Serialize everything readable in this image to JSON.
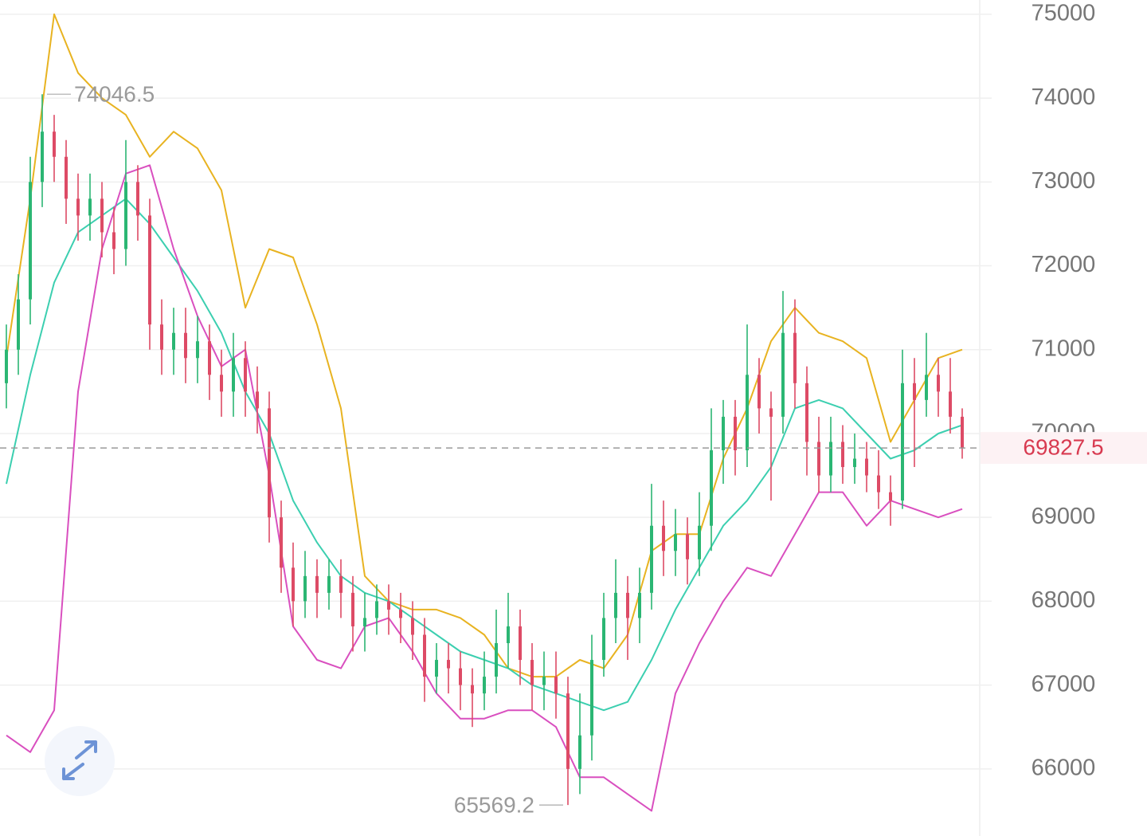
{
  "chart_data": {
    "type": "candlestick",
    "open": [
      70600,
      71000,
      71600,
      73000,
      73600,
      73300,
      72800,
      72600,
      72800,
      72400,
      72200,
      73000,
      72600,
      71300,
      71000,
      71200,
      70900,
      71100,
      70700,
      70500,
      70900,
      70500,
      70300,
      69000,
      68400,
      68000,
      68300,
      68100,
      68300,
      68100,
      67700,
      67800,
      68000,
      67900,
      67800,
      67600,
      67100,
      67300,
      67200,
      67000,
      66900,
      67100,
      67500,
      67700,
      67300,
      67000,
      67100,
      66900,
      66000,
      66400,
      67300,
      67800,
      68100,
      67800,
      68100,
      68900,
      68600,
      68800,
      68500,
      68900,
      69800,
      70200,
      69800,
      70700,
      70300,
      70200,
      71200,
      70600,
      69900,
      69500,
      69900,
      69600,
      69700,
      69500,
      69300,
      69200,
      70600,
      70400,
      70700,
      70500,
      70200
    ],
    "high": [
      71300,
      71900,
      73300,
      74046.5,
      73800,
      73500,
      73100,
      73100,
      73000,
      72700,
      73500,
      73200,
      72800,
      71600,
      71500,
      71500,
      71400,
      71300,
      71000,
      71200,
      71100,
      70800,
      70500,
      69200,
      68700,
      68600,
      68500,
      68500,
      68500,
      68300,
      68100,
      68200,
      68200,
      68100,
      68000,
      67800,
      67500,
      67500,
      67400,
      67200,
      67400,
      67900,
      68100,
      67900,
      67500,
      67400,
      67400,
      67100,
      66900,
      67600,
      68100,
      68500,
      68300,
      68400,
      69400,
      69200,
      69100,
      69000,
      69300,
      70300,
      70400,
      70400,
      71300,
      70900,
      70500,
      71700,
      71600,
      70800,
      70200,
      70200,
      70100,
      70000,
      69900,
      69800,
      69500,
      71000,
      70900,
      71200,
      70900,
      70900,
      70300
    ],
    "low": [
      70300,
      70700,
      71300,
      72700,
      73000,
      72500,
      72300,
      72300,
      72100,
      71900,
      72000,
      72300,
      71000,
      70700,
      70700,
      70600,
      70600,
      70400,
      70200,
      70200,
      70200,
      70000,
      68700,
      68100,
      67700,
      67800,
      67800,
      67900,
      67800,
      67400,
      67400,
      67600,
      67600,
      67500,
      67300,
      66800,
      66900,
      66900,
      66700,
      66500,
      66700,
      66900,
      67200,
      67000,
      66700,
      66700,
      66600,
      65569.2,
      65700,
      66100,
      67100,
      67500,
      67300,
      67500,
      67900,
      68300,
      68300,
      68200,
      68300,
      68600,
      69400,
      69500,
      69600,
      70000,
      69200,
      70000,
      70300,
      69500,
      69300,
      69300,
      69400,
      69400,
      69300,
      69100,
      68900,
      69100,
      69600,
      70200,
      70200,
      70000,
      69700
    ],
    "close": [
      71000,
      71600,
      73000,
      73600,
      73300,
      72800,
      72600,
      72800,
      72400,
      72200,
      73000,
      72600,
      71300,
      71000,
      71200,
      70900,
      71100,
      70700,
      70500,
      70900,
      70500,
      70300,
      69000,
      68400,
      68000,
      68300,
      68100,
      68300,
      68100,
      67700,
      67800,
      68000,
      67900,
      67800,
      67600,
      67100,
      67300,
      67200,
      67000,
      66900,
      67100,
      67500,
      67700,
      67300,
      67000,
      67100,
      66900,
      66000,
      66400,
      67300,
      67800,
      68100,
      67800,
      68100,
      68900,
      68600,
      68800,
      68500,
      68900,
      69800,
      70200,
      69800,
      70700,
      70300,
      70200,
      71200,
      70600,
      69900,
      69500,
      69900,
      69600,
      69700,
      69500,
      69300,
      69200,
      70600,
      70400,
      70700,
      70500,
      70200,
      69827.5
    ],
    "up_color": "#2bb673",
    "down_color": "#dd4b66",
    "overlays": [
      {
        "color": "#e8b321",
        "x": [
          0,
          2,
          4,
          6,
          8,
          10,
          12,
          14,
          16,
          18,
          20,
          22,
          24,
          26,
          28,
          30,
          32,
          34,
          36,
          38,
          40,
          42,
          44,
          46,
          48,
          50,
          52,
          54,
          56,
          58,
          60,
          62,
          64,
          66,
          68,
          70,
          72,
          74,
          76,
          78,
          80
        ],
        "values": [
          70900,
          72800,
          75000,
          74300,
          74000,
          73800,
          73300,
          73600,
          73400,
          72900,
          71500,
          72200,
          72100,
          71300,
          70300,
          68300,
          68000,
          67900,
          67900,
          67800,
          67600,
          67200,
          67100,
          67100,
          67300,
          67200,
          67600,
          68600,
          68800,
          68800,
          69700,
          70300,
          71100,
          71500,
          71200,
          71100,
          70900,
          69900,
          70400,
          70900,
          71000
        ]
      },
      {
        "color": "#3ccfb0",
        "x": [
          0,
          2,
          4,
          6,
          8,
          10,
          12,
          14,
          16,
          18,
          20,
          22,
          24,
          26,
          28,
          30,
          32,
          34,
          36,
          38,
          40,
          42,
          44,
          46,
          48,
          50,
          52,
          54,
          56,
          58,
          60,
          62,
          64,
          66,
          68,
          70,
          72,
          74,
          76,
          78,
          80
        ],
        "values": [
          69400,
          70700,
          71800,
          72400,
          72600,
          72800,
          72500,
          72100,
          71700,
          71200,
          70500,
          70000,
          69200,
          68700,
          68300,
          68100,
          68000,
          67800,
          67600,
          67400,
          67300,
          67200,
          67000,
          66900,
          66800,
          66700,
          66800,
          67300,
          67900,
          68400,
          68900,
          69200,
          69600,
          70300,
          70400,
          70300,
          70000,
          69700,
          69800,
          70000,
          70100
        ]
      },
      {
        "color": "#d94fbf",
        "x": [
          0,
          2,
          4,
          6,
          8,
          10,
          12,
          14,
          16,
          18,
          20,
          22,
          24,
          26,
          28,
          30,
          32,
          34,
          36,
          38,
          40,
          42,
          44,
          46,
          48,
          50,
          52,
          54,
          56,
          58,
          60,
          62,
          64,
          66,
          68,
          70,
          72,
          74,
          76,
          78,
          80
        ],
        "values": [
          66400,
          66200,
          66700,
          70500,
          72200,
          73100,
          73200,
          72200,
          71400,
          70800,
          71000,
          69500,
          67700,
          67300,
          67200,
          67700,
          67800,
          67400,
          66900,
          66600,
          66600,
          66700,
          66700,
          66500,
          65900,
          65900,
          65700,
          65500,
          66900,
          67500,
          68000,
          68400,
          68300,
          68800,
          69300,
          69300,
          68900,
          69200,
          69100,
          69000,
          69100
        ]
      }
    ],
    "ylim": [
      65200,
      75170
    ],
    "yticks": [
      66000,
      67000,
      68000,
      69000,
      70000,
      71000,
      72000,
      73000,
      74000,
      75000
    ],
    "grid": true,
    "last_price_color": "#d83a50"
  }
}
